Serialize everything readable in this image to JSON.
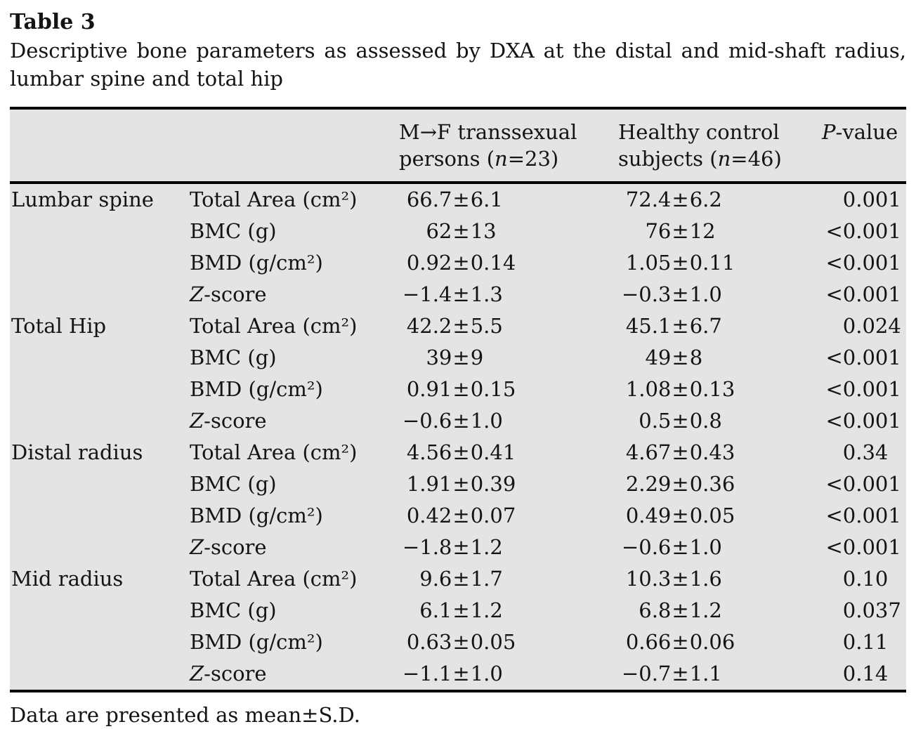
{
  "title": "Table 3",
  "caption": "Descriptive bone parameters as assessed by DXA at the distal and mid-shaft radius, lumbar spine and total hip",
  "footnote": "Data are presented as mean±S.D.",
  "colors": {
    "table_background": "#e4e4e4",
    "rule": "#000000",
    "text": "#141414",
    "page_background": "#ffffff"
  },
  "table": {
    "headers": {
      "mtf": {
        "line1": "M→F transsexual",
        "line2_pre": "persons (",
        "n": "n",
        "line2_post": "=23)"
      },
      "control": {
        "line1": "Healthy control",
        "line2_pre": "subjects (",
        "n": "n",
        "line2_post": "=46)"
      },
      "pvalue": {
        "italic": "P",
        "rest": "-value"
      }
    },
    "rows": [
      {
        "region": "Lumbar spine",
        "param": "Total Area (cm²)",
        "mtf": "66.7±6.1",
        "control": "72.4±6.2",
        "p": "0.001"
      },
      {
        "region": "",
        "param": "BMC (g)",
        "mtf": "62±13",
        "control": "76±12",
        "p": "<0.001"
      },
      {
        "region": "",
        "param": "BMD (g/cm²)",
        "mtf": "0.92±0.14",
        "control": "1.05±0.11",
        "p": "<0.001"
      },
      {
        "region": "",
        "param": "Z-score",
        "mtf": "−1.4±1.3",
        "control": "−0.3±1.0",
        "p": "<0.001"
      },
      {
        "region": "Total Hip",
        "param": "Total Area (cm²)",
        "mtf": "42.2±5.5",
        "control": "45.1±6.7",
        "p": "0.024"
      },
      {
        "region": "",
        "param": "BMC (g)",
        "mtf": "39±9",
        "control": "49±8",
        "p": "<0.001"
      },
      {
        "region": "",
        "param": "BMD (g/cm²)",
        "mtf": "0.91±0.15",
        "control": "1.08±0.13",
        "p": "<0.001"
      },
      {
        "region": "",
        "param": "Z-score",
        "mtf": "−0.6±1.0",
        "control": "0.5±0.8",
        "p": "<0.001"
      },
      {
        "region": "Distal radius",
        "param": "Total Area (cm²)",
        "mtf": "4.56±0.41",
        "control": "4.67±0.43",
        "p": "0.34"
      },
      {
        "region": "",
        "param": "BMC (g)",
        "mtf": "1.91±0.39",
        "control": "2.29±0.36",
        "p": "<0.001"
      },
      {
        "region": "",
        "param": "BMD (g/cm²)",
        "mtf": "0.42±0.07",
        "control": "0.49±0.05",
        "p": "<0.001"
      },
      {
        "region": "",
        "param": "Z-score",
        "mtf": "−1.8±1.2",
        "control": "−0.6±1.0",
        "p": "<0.001"
      },
      {
        "region": "Mid radius",
        "param": "Total Area (cm²)",
        "mtf": "9.6±1.7",
        "control": "10.3±1.6",
        "p": "0.10"
      },
      {
        "region": "",
        "param": "BMC (g)",
        "mtf": "6.1±1.2",
        "control": "6.8±1.2",
        "p": "0.037"
      },
      {
        "region": "",
        "param": "BMD (g/cm²)",
        "mtf": "0.63±0.05",
        "control": "0.66±0.06",
        "p": "0.11"
      },
      {
        "region": "",
        "param": "Z-score",
        "mtf": "−1.1±1.0",
        "control": "−0.7±1.1",
        "p": "0.14"
      }
    ]
  }
}
